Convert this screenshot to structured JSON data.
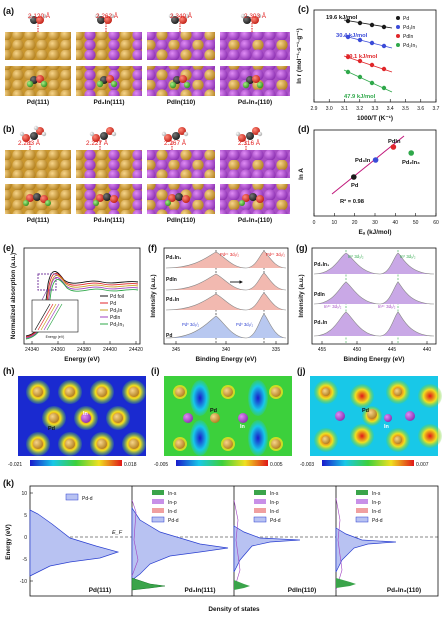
{
  "panel_labels": {
    "a": "(a)",
    "b": "(b)",
    "c": "(c)",
    "d": "(d)",
    "e": "(e)",
    "f": "(f)",
    "g": "(g)",
    "h": "(h)",
    "i": "(i)",
    "j": "(j)",
    "k": "(k)"
  },
  "panel_a": {
    "distances": [
      "2.120 Å",
      "2.262 Å",
      "2.340 Å",
      "2.303 Å"
    ],
    "captions": [
      "Pd(111)",
      "Pd₃In(111)",
      "PdIn(110)",
      "Pd₂In₃(110)"
    ]
  },
  "panel_b": {
    "distances": [
      "2.283 Å",
      "2.227 Å",
      "2.267 Å",
      "2.316 Å"
    ],
    "captions": [
      "Pd(111)",
      "Pd₃In(111)",
      "PdIn(110)",
      "Pd₂In₃(110)"
    ]
  },
  "panel_c": {
    "ylabel": "ln r (mol⁻¹·s⁻¹·g⁻¹)",
    "xlabel": "1000/T (K⁻¹)",
    "xticks": [
      "2.9",
      "3.0",
      "3.1",
      "3.2",
      "3.3",
      "3.4",
      "3.5",
      "3.6",
      "3.7"
    ],
    "ea_labels": [
      "19.6 kJ/mol",
      "30.4 kJ/mol",
      "39.1 kJ/mol",
      "47.9 kJ/mol"
    ],
    "legend": [
      "Pd",
      "Pd₃In",
      "PdIn",
      "Pd₂In₃"
    ]
  },
  "panel_d": {
    "ylabel": "ln A",
    "xlabel": "Eₐ (kJ/mol)",
    "xticks": [
      "0",
      "10",
      "20",
      "30",
      "40",
      "50",
      "60"
    ],
    "point_labels": [
      "Pd",
      "Pd₃In",
      "PdIn",
      "Pd₂In₃"
    ],
    "r2": "R² = 0.98"
  },
  "panel_e": {
    "ylabel": "Normalized absorption (a.u.)",
    "xlabel": "Energy (eV)",
    "xticks": [
      "24340",
      "24360",
      "24380",
      "24400",
      "24420"
    ],
    "legend": [
      "Pd foil",
      "Pd",
      "Pd₃In",
      "PdIn",
      "Pd₂In₃"
    ],
    "inset_xlabel": "Energy (eV)"
  },
  "panel_f": {
    "ylabel": "Intensity (a.u.)",
    "xlabel": "Binding Energy (eV)",
    "xticks": [
      "345",
      "340",
      "335"
    ],
    "samples": [
      "Pd₂In₃",
      "PdIn",
      "Pd₃In",
      "Pd"
    ],
    "peaks": [
      "Pd⁰ 3d₃/₂",
      "Pd⁰ 3d₅/₂",
      "Pd²⁺ 3d₃/₂",
      "Pd²⁺ 3d₅/₂"
    ]
  },
  "panel_g": {
    "ylabel": "Intensity (a.u.)",
    "xlabel": "Binding Energy (eV)",
    "xticks": [
      "455",
      "450",
      "445",
      "440"
    ],
    "samples": [
      "Pd₂In₃",
      "PdIn",
      "Pd₃In"
    ],
    "peaks": [
      "In⁰ 3d₃/₂",
      "In⁰ 3d₅/₂",
      "In³⁺ 3d₃/₂",
      "In³⁺ 3d₅/₂"
    ]
  },
  "panel_hij": {
    "atom_labels": {
      "in": "In",
      "pd": "Pd"
    },
    "colorbars": [
      {
        "min": "-0.021",
        "max": "0.018"
      },
      {
        "min": "-0.005",
        "max": "0.005"
      },
      {
        "min": "-0.003",
        "max": "0.007"
      }
    ]
  },
  "panel_k": {
    "ylabel": "Energy (eV)",
    "xlabel": "Density of states",
    "yticks": [
      "10",
      "5",
      "0",
      "-5",
      "-10"
    ],
    "ef_label": "E_F",
    "legend_first": [
      "Pd-d"
    ],
    "legend_others": [
      "In-s",
      "In-p",
      "In-d",
      "Pd-d"
    ],
    "captions": [
      "Pd(111)",
      "Pd₃In(111)",
      "PdIn(110)",
      "Pd₂In₃(110)"
    ]
  },
  "colors": {
    "pd": "#1a1a1a",
    "pd3in": "#3b4bd8",
    "pdin": "#e0262a",
    "pd2in3": "#2fa84a",
    "accent_red": "#e01818"
  }
}
